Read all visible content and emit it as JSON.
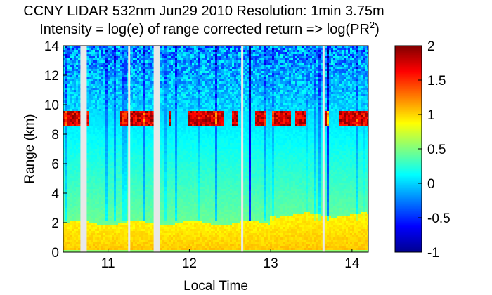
{
  "chart_data": {
    "type": "heatmap",
    "title_line1": "CCNY LIDAR 532nm Jun29 2010 Resolution: 1min 3.75m",
    "title_line2_prefix": "Intensity = log(e) of range corrected return => log(PR",
    "title_line2_sup": "2",
    "title_line2_suffix": ")",
    "xlabel": "Local Time",
    "ylabel": "Range (km)",
    "xlim": [
      10.45,
      14.2
    ],
    "ylim": [
      0,
      14
    ],
    "xticks": [
      "11",
      "12",
      "13",
      "14"
    ],
    "xtick_values": [
      11,
      12,
      13,
      14
    ],
    "yticks": [
      "0",
      "2",
      "4",
      "6",
      "8",
      "10",
      "12",
      "14"
    ],
    "ytick_values": [
      0,
      2,
      4,
      6,
      8,
      10,
      12,
      14
    ],
    "colorbar": {
      "range": [
        -1,
        2
      ],
      "ticks": [
        "-1",
        "-0.5",
        "0",
        "0.5",
        "1",
        "1.5",
        "2"
      ],
      "tick_values": [
        -1,
        -0.5,
        0,
        0.5,
        1,
        1.5,
        2
      ],
      "colormap": "jet"
    },
    "features": {
      "boundary_layer_top_km": 2.0,
      "cloud_layer_km": [
        8.5,
        9.6
      ],
      "data_gaps_local_time": [
        10.7,
        11.26,
        11.6,
        12.65,
        13.65
      ]
    },
    "grid": false
  }
}
